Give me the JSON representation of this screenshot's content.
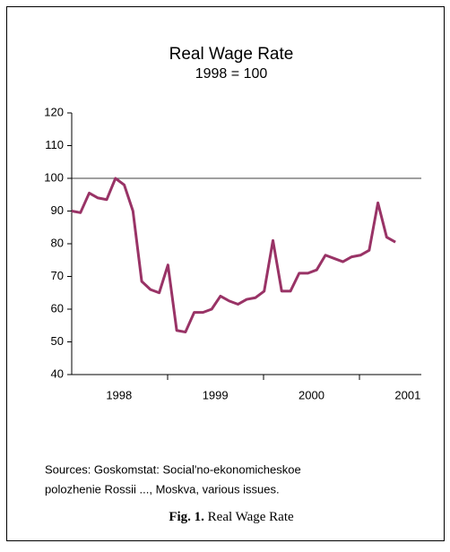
{
  "chart_data": {
    "type": "line",
    "title": "Real Wage Rate",
    "subtitle": "1998 = 100",
    "categories": [
      null,
      null,
      null,
      null,
      null,
      "1998",
      null,
      null,
      null,
      null,
      null,
      null,
      null,
      null,
      null,
      null,
      "1999",
      null,
      null,
      null,
      null,
      null,
      null,
      null,
      null,
      null,
      null,
      "2000",
      null,
      null,
      null,
      null,
      null,
      null,
      null,
      null,
      null,
      null,
      "2001"
    ],
    "series": [
      {
        "name": "Real Wage Rate",
        "color": "#993366",
        "values": [
          90,
          89.5,
          95.5,
          94,
          93.5,
          100,
          98,
          90,
          68.5,
          66,
          65,
          73.5,
          53.5,
          53,
          59,
          59,
          60,
          64,
          62.5,
          61.5,
          63,
          63.5,
          65.5,
          81,
          65.5,
          65.5,
          71,
          71,
          72,
          76.5,
          75.5,
          74.5,
          76,
          76.5,
          78,
          92.5,
          82,
          80.5,
          null
        ]
      }
    ],
    "ylim": [
      40,
      120
    ],
    "yticks": [
      40,
      50,
      60,
      70,
      80,
      90,
      100,
      110,
      120
    ],
    "reference_line": 100
  },
  "notes": {
    "sources_line1": "Sources: Goskomstat: Social'no-ekonomicheskoe",
    "sources_line2": "polozhenie Rossii ..., Moskva, various issues.",
    "caption_label": "Fig. 1.",
    "caption_text": "Real Wage Rate"
  }
}
